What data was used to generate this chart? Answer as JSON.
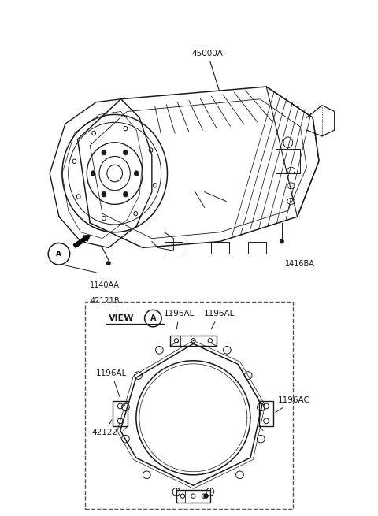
{
  "bg_color": "#ffffff",
  "lc": "#1a1a1a",
  "fig_width": 4.8,
  "fig_height": 6.55,
  "dpi": 100,
  "parts": {
    "main": "45000A",
    "bolt1": "1416BA",
    "bolt2": "1140AA",
    "bolt3": "42121B",
    "plate": "42122",
    "bAL1": "1196AL",
    "bAL2": "1196AL",
    "bAL3": "1196AL",
    "bAC": "1196AC"
  }
}
